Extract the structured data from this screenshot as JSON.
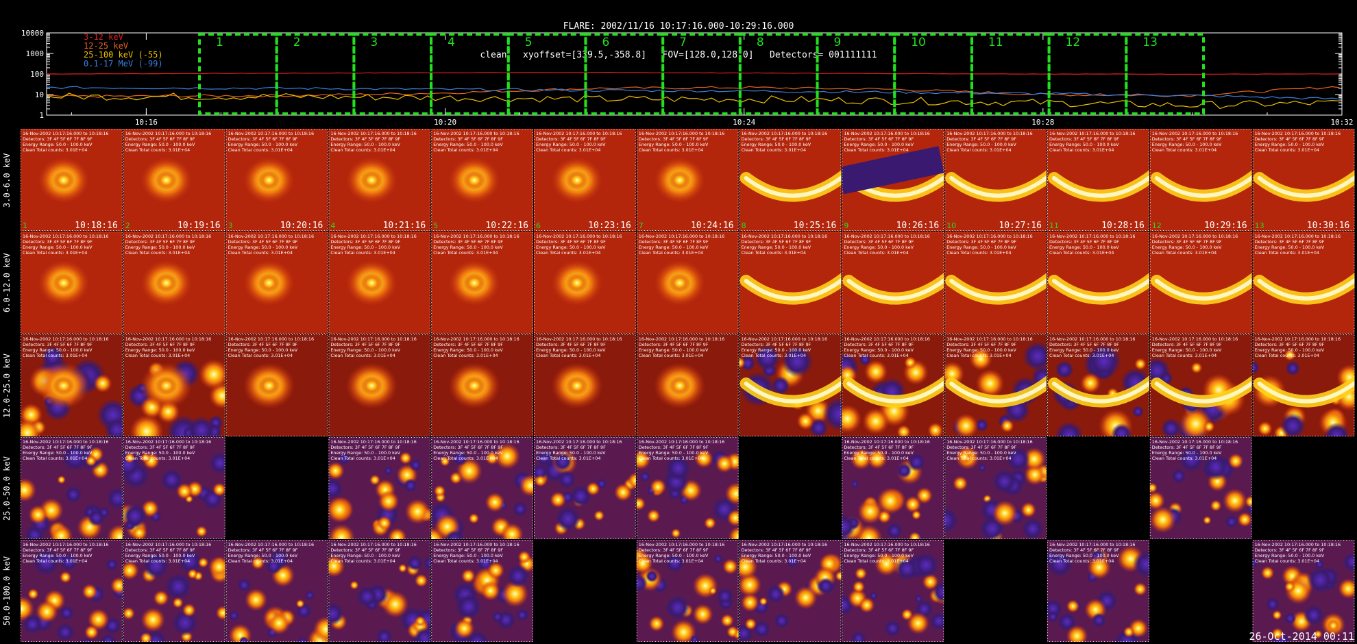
{
  "header": {
    "line1": "FLARE: 2002/11/16 10:17:16.000-10:29:16.000",
    "line2": "clean   xyoffset=[339.5,-358.8]   FOV=[128.0,128.0]   Detectors= 001111111"
  },
  "footer_stamp": "26-Oct-2014 00:11",
  "chart_data": [
    {
      "type": "line",
      "title": "",
      "y_scale": "log",
      "ylim": [
        1,
        10000
      ],
      "y_ticks": [
        "10000",
        "1000",
        "100",
        "10",
        "1"
      ],
      "x_ticks": [
        "10:16",
        "10:20",
        "10:24",
        "10:28",
        "10:32"
      ],
      "xlim": [
        "10:14:40",
        "10:32:00"
      ],
      "legend_position": "top-left",
      "series": [
        {
          "name": "3-12 keV",
          "color": "#e0201c",
          "x": [
            "10:14:40",
            "10:18",
            "10:20",
            "10:22",
            "10:24",
            "10:26",
            "10:28",
            "10:30",
            "10:32"
          ],
          "values": [
            100,
            110,
            115,
            118,
            112,
            105,
            100,
            98,
            100
          ]
        },
        {
          "name": "12-25 keV",
          "color": "#e8641c",
          "x": [
            "10:14:40",
            "10:18",
            "10:20",
            "10:22",
            "10:24",
            "10:26",
            "10:28",
            "10:30",
            "10:32"
          ],
          "values": [
            8,
            9,
            12,
            20,
            22,
            18,
            10,
            9,
            25
          ]
        },
        {
          "name": "25-100 keV (-55)",
          "color": "#f0c000",
          "x": [
            "10:14:40",
            "10:18",
            "10:20",
            "10:22",
            "10:24",
            "10:26",
            "10:28",
            "10:30",
            "10:32"
          ],
          "values": [
            8,
            8,
            7,
            6,
            6,
            5,
            4,
            3,
            4
          ]
        },
        {
          "name": "0.1-17 MeV (-99)",
          "color": "#3a7fe0",
          "x": [
            "10:14:40",
            "10:18",
            "10:20",
            "10:22",
            "10:24",
            "10:26",
            "10:28",
            "10:30",
            "10:32"
          ],
          "values": [
            22,
            20,
            18,
            16,
            15,
            13,
            11,
            9,
            6
          ]
        }
      ],
      "intervals": [
        "1",
        "2",
        "3",
        "4",
        "5",
        "6",
        "7",
        "8",
        "9",
        "10",
        "11",
        "12",
        "13"
      ]
    },
    {
      "type": "heatmap",
      "title": "",
      "row_labels": [
        "3.0-6.0 keV",
        "6.0-12.0 keV",
        "12.0-25.0 keV",
        "25.0-50.0 keV",
        "50.0-100.0 keV"
      ],
      "column_times": [
        "10:18:16",
        "10:19:16",
        "10:20:16",
        "10:21:16",
        "10:22:16",
        "10:23:16",
        "10:24:16",
        "10:25:16",
        "10:26:16",
        "10:27:16",
        "10:28:16",
        "10:29:16",
        "10:30:16"
      ],
      "column_numbers": [
        "1",
        "2",
        "3",
        "4",
        "5",
        "6",
        "7",
        "8",
        "9",
        "10",
        "11",
        "12",
        "13"
      ],
      "cell_text": {
        "date_line": "16-Nov-2002 10:17:16.000 to 10:18:16",
        "detectors_line": "Detectors: 3F 4F 5F 6F 7F 8F 9F",
        "energy_line": "Energy Range: 50.0 - 100.0 keV",
        "counts_line": "Clean    Total counts: 3.01E+04"
      },
      "empty_cells": [
        [
          3,
          2
        ],
        [
          3,
          7
        ],
        [
          3,
          10
        ],
        [
          3,
          12
        ],
        [
          4,
          5
        ],
        [
          4,
          9
        ],
        [
          4,
          11
        ]
      ]
    }
  ]
}
